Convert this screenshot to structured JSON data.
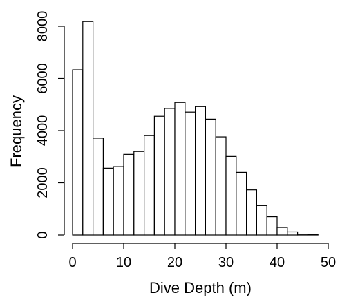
{
  "chart_data": {
    "type": "bar",
    "title": "",
    "xlabel": "Dive Depth (m)",
    "ylabel": "Frequency",
    "bin_width": 2,
    "x_start": 0,
    "counts": [
      6330,
      8180,
      3710,
      2560,
      2620,
      3090,
      3200,
      3810,
      4550,
      4850,
      5080,
      4710,
      4920,
      4440,
      3760,
      3010,
      2400,
      1730,
      1130,
      700,
      290,
      120,
      35,
      10
    ],
    "xlim": [
      0,
      50
    ],
    "ylim": [
      0,
      8200
    ],
    "x_ticks": [
      0,
      10,
      20,
      30,
      40,
      50
    ],
    "y_ticks": [
      0,
      2000,
      4000,
      6000,
      8000
    ],
    "x_tick_labels": [
      "0",
      "10",
      "20",
      "30",
      "40",
      "50"
    ],
    "y_tick_labels": [
      "0",
      "2000",
      "4000",
      "6000",
      "8000"
    ],
    "grid": false,
    "legend": "none",
    "bar_fill": "#ffffff",
    "bar_stroke": "#000000"
  }
}
